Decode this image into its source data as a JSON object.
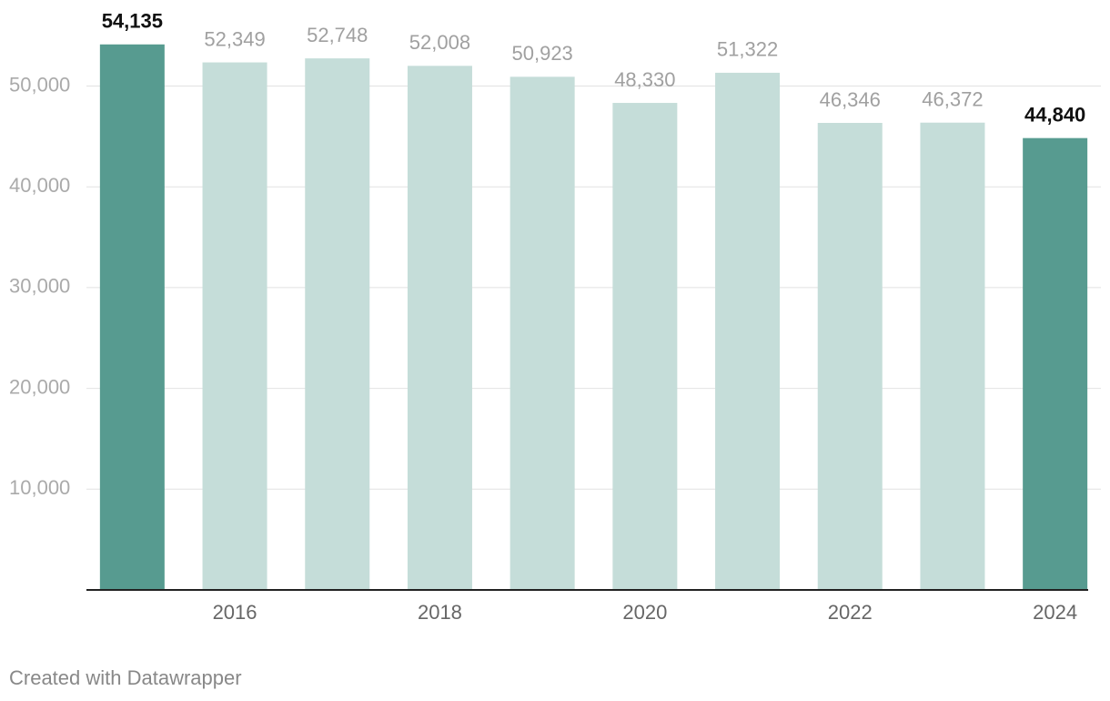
{
  "chart_data": {
    "type": "bar",
    "categories": [
      null,
      "2016",
      null,
      "2018",
      null,
      "2020",
      null,
      "2022",
      null,
      "2024"
    ],
    "values": [
      54135,
      52349,
      52748,
      52008,
      50923,
      48330,
      51322,
      46346,
      46372,
      44840
    ],
    "value_labels": [
      "54,135",
      "52,349",
      "52,748",
      "52,008",
      "50,923",
      "48,330",
      "51,322",
      "46,346",
      "46,372",
      "44,840"
    ],
    "color": "#c5ddd9",
    "highlight_color": "#579b90",
    "colors": [
      "#579b90",
      "#c5ddd9",
      "#c5ddd9",
      "#c5ddd9",
      "#c5ddd9",
      "#c5ddd9",
      "#c5ddd9",
      "#c5ddd9",
      "#c5ddd9",
      "#579b90"
    ],
    "ylim": [
      0,
      58000
    ],
    "yticks": [
      {
        "value": 10000,
        "label": "10,000"
      },
      {
        "value": 20000,
        "label": "20,000"
      },
      {
        "value": 30000,
        "label": "30,000"
      },
      {
        "value": 40000,
        "label": "40,000"
      },
      {
        "value": 50000,
        "label": "50,000"
      }
    ],
    "grid": true,
    "footer": "Created with Datawrapper"
  }
}
